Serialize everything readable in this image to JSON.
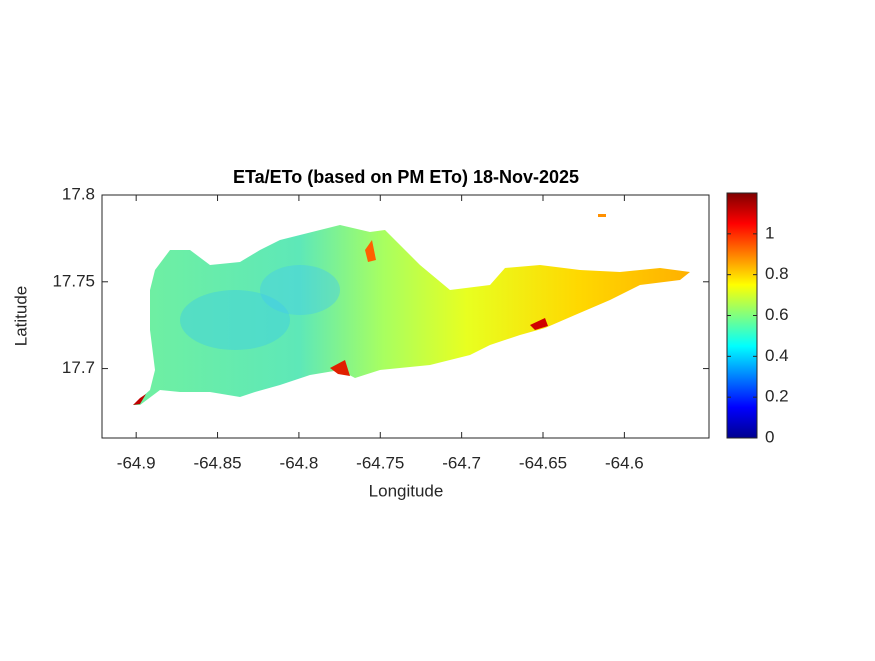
{
  "chart_data": {
    "type": "map",
    "title": "ETa/ETo (based on PM ETo) 18-Nov-2025",
    "xlabel": "Longitude",
    "ylabel": "Latitude",
    "xlim": [
      -64.921,
      -64.548
    ],
    "xticks": [
      -64.9,
      -64.85,
      -64.8,
      -64.75,
      -64.7,
      -64.65,
      -64.6
    ],
    "ylim": [
      17.66,
      17.8
    ],
    "yticks": [
      17.7,
      17.75,
      17.8
    ],
    "colormap": "jet",
    "clim": [
      0,
      1.2
    ],
    "cticks": [
      0,
      0.2,
      0.4,
      0.6,
      0.8,
      1
    ]
  }
}
